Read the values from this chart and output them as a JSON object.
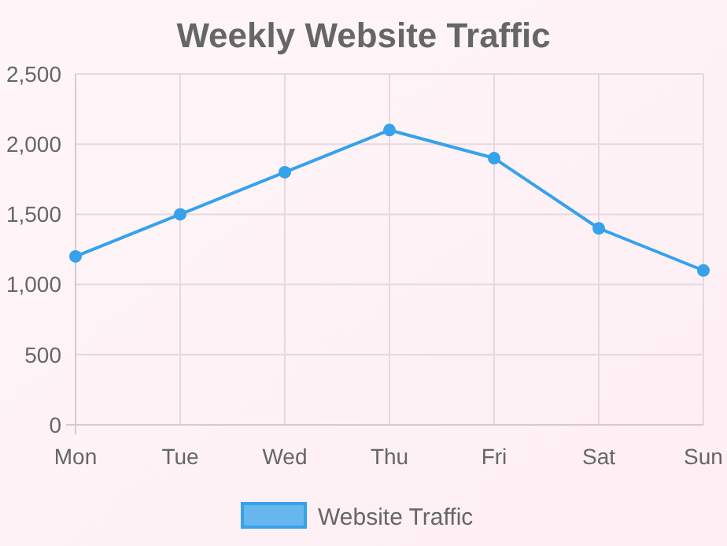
{
  "chart_data": {
    "type": "line",
    "title": "Weekly Website Traffic",
    "categories": [
      "Mon",
      "Tue",
      "Wed",
      "Thu",
      "Fri",
      "Sat",
      "Sun"
    ],
    "series": [
      {
        "name": "Website Traffic",
        "color": "#36a2eb",
        "values": [
          1200,
          1500,
          1800,
          2100,
          1900,
          1400,
          1100
        ]
      }
    ],
    "ylim": [
      0,
      2500
    ],
    "yticks": [
      {
        "value": 0,
        "label": "0"
      },
      {
        "value": 500,
        "label": "500"
      },
      {
        "value": 1000,
        "label": "1,000"
      },
      {
        "value": 1500,
        "label": "1,500"
      },
      {
        "value": 2000,
        "label": "2,000"
      },
      {
        "value": 2500,
        "label": "2,500"
      }
    ],
    "grid": true,
    "legend": "bottom",
    "marker": "circle",
    "line_style": "solid"
  }
}
